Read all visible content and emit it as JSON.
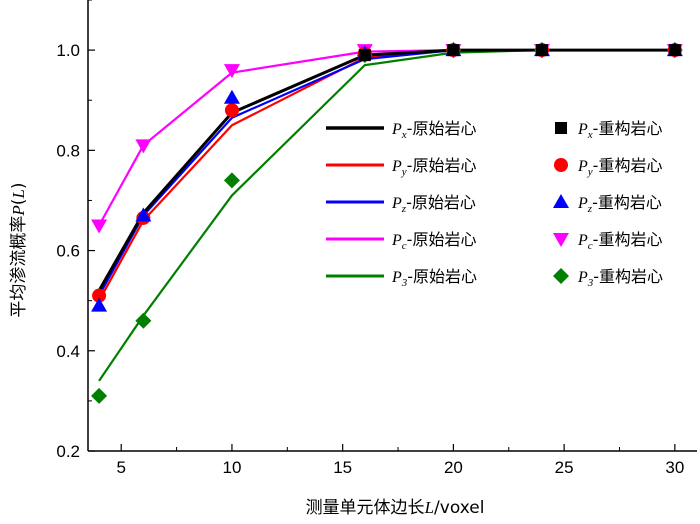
{
  "chart_data": {
    "type": "line",
    "xlabel_main": "测量单元体边长",
    "xlabel_var": "L",
    "xlabel_unit": "/voxel",
    "ylabel_main": "平均渗流概率",
    "ylabel_var": "P",
    "ylabel_paren_open": "(",
    "ylabel_paren_var": "L",
    "ylabel_paren_close": ")",
    "xlim": [
      3.5,
      31
    ],
    "ylim": [
      0.2,
      1.1
    ],
    "xticks": [
      5,
      10,
      15,
      20,
      25,
      30
    ],
    "xtick_labels": [
      "5",
      "10",
      "15",
      "20",
      "25",
      "30"
    ],
    "yticks": [
      0.2,
      0.4,
      0.6,
      0.8,
      1.0
    ],
    "ytick_labels": [
      "0.2",
      "0.4",
      "0.6",
      "0.8",
      "1.0"
    ],
    "series": [
      {
        "id": "px",
        "color": "#000000",
        "marker": "square",
        "line_x": [
          4,
          6,
          10,
          16,
          20,
          24,
          30
        ],
        "line_values": [
          0.52,
          0.675,
          0.875,
          0.99,
          1.0,
          1.0,
          1.0
        ],
        "marker_x": [
          16,
          20,
          24,
          30
        ],
        "marker_values": [
          0.99,
          1.0,
          1.0,
          1.0
        ],
        "legend_var": "P",
        "legend_sub": "x",
        "legend_line_text": "-原始岩心",
        "legend_marker_text": "-重构岩心"
      },
      {
        "id": "py",
        "color": "#ff0000",
        "marker": "circle",
        "line_x": [
          4,
          6,
          10,
          16,
          20,
          24,
          30
        ],
        "line_values": [
          0.5,
          0.66,
          0.85,
          0.985,
          1.0,
          1.0,
          1.0
        ],
        "marker_x": [
          4,
          6,
          10,
          16,
          20,
          24,
          30
        ],
        "marker_values": [
          0.51,
          0.665,
          0.88,
          0.993,
          1.0,
          1.0,
          1.0
        ],
        "legend_var": "P",
        "legend_sub": "y",
        "legend_line_text": "-原始岩心",
        "legend_marker_text": "-重构岩心"
      },
      {
        "id": "pz",
        "color": "#0000ff",
        "marker": "triangle-up",
        "line_x": [
          4,
          6,
          10,
          16,
          20,
          24,
          30
        ],
        "line_values": [
          0.51,
          0.67,
          0.865,
          0.982,
          1.0,
          1.0,
          1.0
        ],
        "marker_x": [
          4,
          6,
          10,
          16,
          20,
          24,
          30
        ],
        "marker_values": [
          0.49,
          0.67,
          0.905,
          0.993,
          1.0,
          1.0,
          1.0
        ],
        "legend_var": "P",
        "legend_sub": "z",
        "legend_line_text": "-原始岩心",
        "legend_marker_text": "-重构岩心"
      },
      {
        "id": "pc",
        "color": "#ff00ff",
        "marker": "triangle-down",
        "line_x": [
          4,
          6,
          10,
          16,
          20,
          24,
          30
        ],
        "line_values": [
          0.65,
          0.81,
          0.955,
          0.997,
          1.0,
          1.0,
          1.0
        ],
        "marker_x": [
          4,
          6,
          10,
          16,
          20,
          24,
          30
        ],
        "marker_values": [
          0.65,
          0.81,
          0.96,
          1.0,
          1.0,
          1.0,
          1.0
        ],
        "legend_var": "P",
        "legend_sub": "c",
        "legend_line_text": "-原始岩心",
        "legend_marker_text": "-重构岩心"
      },
      {
        "id": "p3",
        "color": "#008000",
        "marker": "diamond",
        "line_x": [
          4,
          6,
          10,
          16,
          20,
          24,
          30
        ],
        "line_values": [
          0.34,
          0.47,
          0.71,
          0.97,
          0.995,
          1.0,
          1.0
        ],
        "marker_x": [
          4,
          6,
          10,
          16,
          20,
          24,
          30
        ],
        "marker_values": [
          0.31,
          0.46,
          0.74,
          0.99,
          1.0,
          1.0,
          1.0
        ],
        "legend_var": "P",
        "legend_sub": "3",
        "legend_line_text": "-原始岩心",
        "legend_marker_text": "-重构岩心"
      }
    ]
  }
}
